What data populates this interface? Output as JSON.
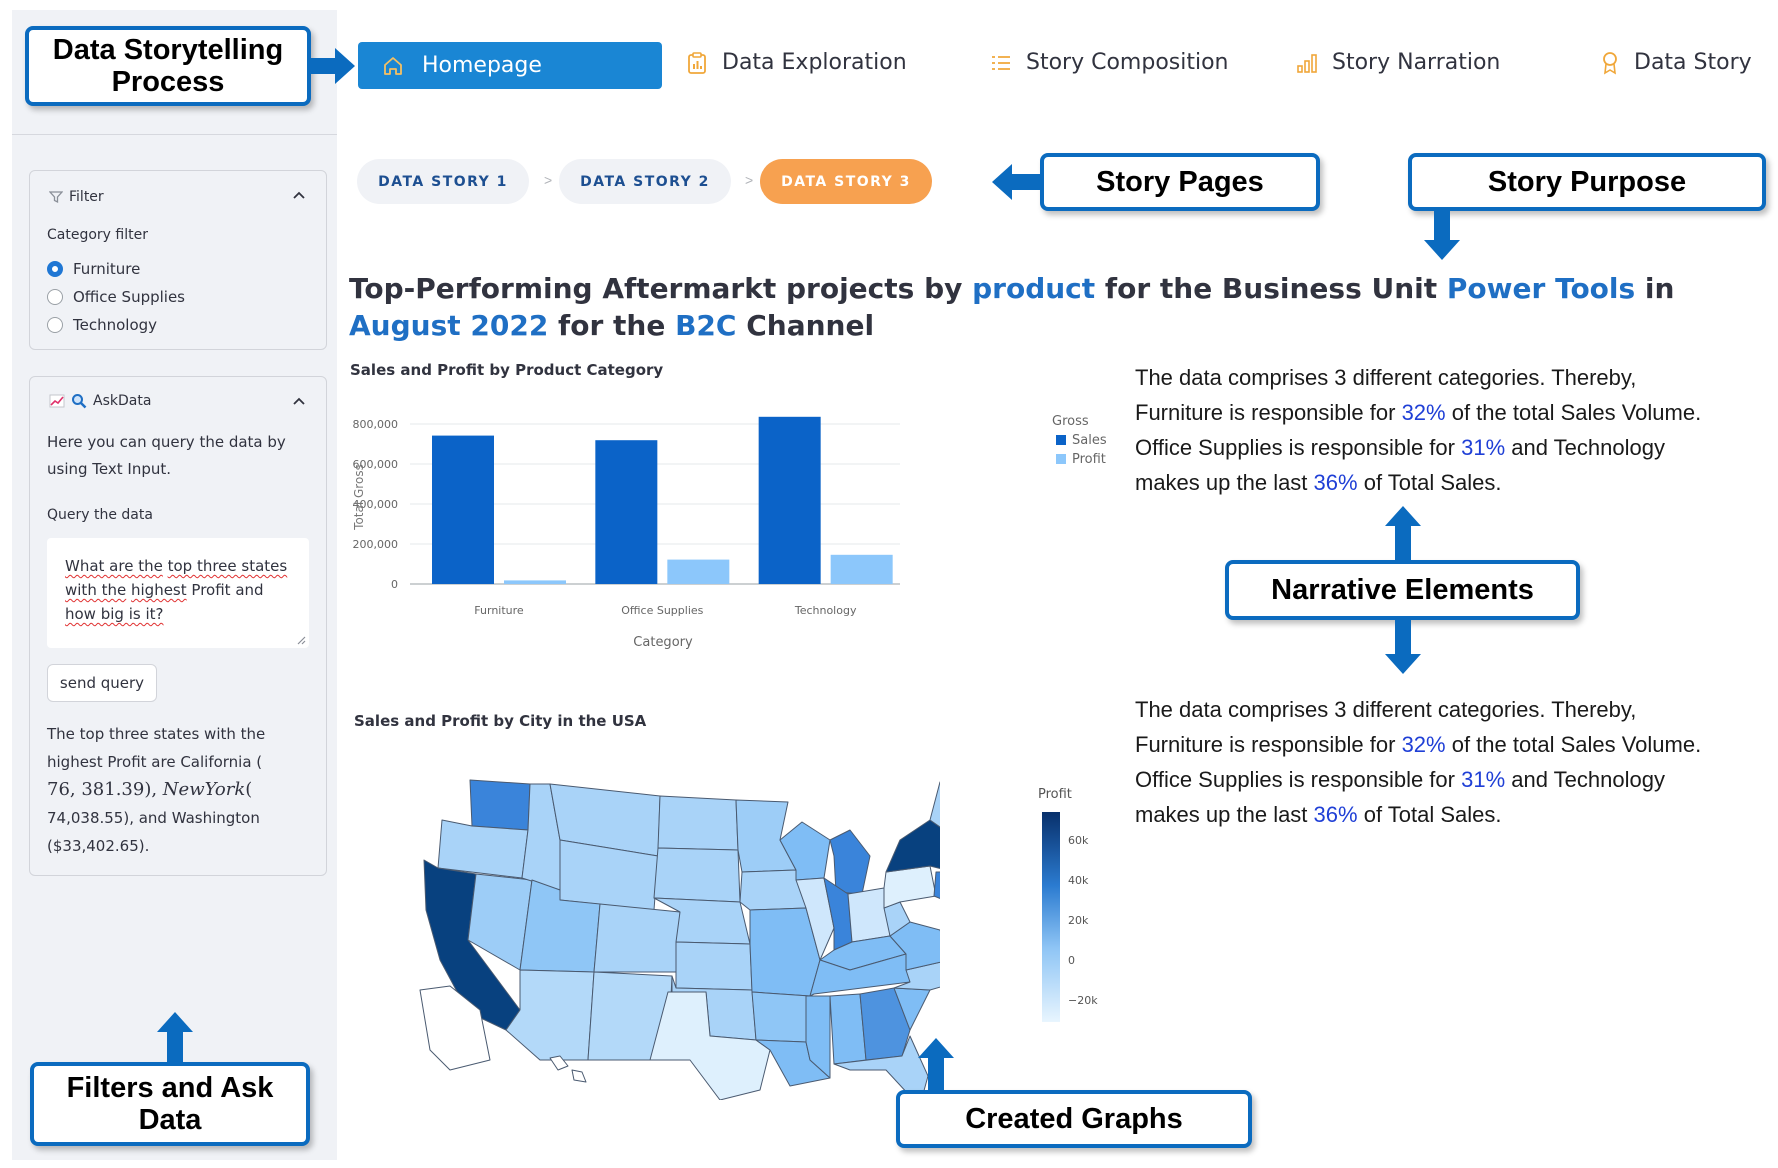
{
  "callouts": {
    "process": "Data Storytelling Process",
    "story_pages": "Story Pages",
    "story_purpose": "Story Purpose",
    "narrative": "Narrative Elements",
    "filters": "Filters and Ask Data",
    "graphs": "Created Graphs"
  },
  "nav": {
    "home": "Homepage",
    "items": [
      "Data Exploration",
      "Story Composition",
      "Story Narration",
      "Data Story"
    ]
  },
  "pages": [
    "DATA STORY 1",
    "DATA STORY 2",
    "DATA STORY 3"
  ],
  "pages_sep": ">",
  "filter": {
    "title": "Filter",
    "label": "Category filter",
    "options": [
      "Furniture",
      "Office Supplies",
      "Technology"
    ],
    "selected": "Furniture"
  },
  "askdata": {
    "title": "AskData",
    "intro_1": "Here you can query the data by",
    "intro_2": "using Text Input.",
    "query_label": "Query the data",
    "query": {
      "l1a": "What are the",
      "l1b": "top three states",
      "l2a": "with the",
      "l2b": "highest",
      "l2c": "Profit and",
      "l3a": "how big is it?"
    },
    "button": "send query",
    "answer": {
      "l1": "The top three states with the",
      "l2": "highest Profit are California (",
      "l3a": "76, 381.39), ",
      "l3b": "NewYork",
      "l3c": "(",
      "l4": "74,038.55), and Washington",
      "l5": "($33,402.65)."
    }
  },
  "headline": {
    "p1": "Top-Performing Aftermarkt projects by ",
    "h1": "product",
    "p2": " for the Business Unit ",
    "h2": "Power Tools",
    "p3": " in ",
    "h3": "August 2022",
    "p4": " for the ",
    "h4": "B2C",
    "p5": " Channel"
  },
  "narrative": {
    "l1": "The data comprises 3 different categories. Thereby,",
    "l2a": "Furniture is responsible for ",
    "l2p": "32%",
    "l2b": " of the total Sales Volume.",
    "l3a": "Office Supplies is responsible for ",
    "l3p": "31%",
    "l3b": " and Technology",
    "l4a": "makes up the last ",
    "l4p": "36%",
    "l4b": " of Total Sales."
  },
  "colors": {
    "sales": "#0b63c8",
    "profit": "#8cc7fb",
    "accent": "#1a86d4",
    "callout": "#0b6bbf",
    "active_page": "#f7a150"
  },
  "chart_data": [
    {
      "type": "bar",
      "title": "Sales and Profit by Product Category",
      "xlabel": "Category",
      "ylabel": "Total Gross",
      "categories": [
        "Furniture",
        "Office Supplies",
        "Technology"
      ],
      "series": [
        {
          "name": "Sales",
          "values": [
            742000,
            719000,
            836000
          ]
        },
        {
          "name": "Profit",
          "values": [
            18000,
            122000,
            146000
          ]
        }
      ],
      "legend_title": "Gross",
      "legend_position": "right",
      "yticks": [
        "0",
        "200,000",
        "400,000",
        "600,000",
        "800,000"
      ],
      "ylim": [
        0,
        870000
      ],
      "grid": true
    },
    {
      "type": "choropleth",
      "title": "Sales and Profit by City in the USA",
      "colorbar_title": "Profit",
      "colorbar_ticks": [
        "60k",
        "40k",
        "20k",
        "0",
        "−20k"
      ],
      "range": [
        -25000,
        76000
      ],
      "values": {
        "California": 76381.39,
        "New York": 74038.55,
        "Washington": 33402.65
      }
    }
  ]
}
